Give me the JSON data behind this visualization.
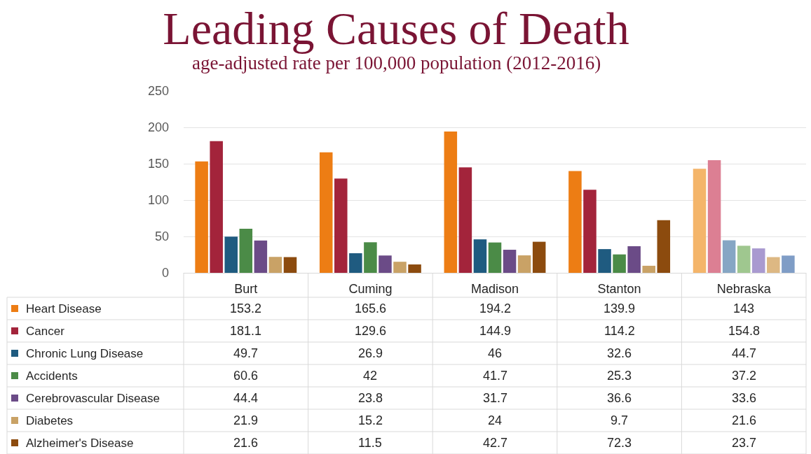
{
  "chart_data": {
    "type": "bar",
    "title": "Leading Causes of Death",
    "subtitle": "age-adjusted rate per 100,000 population (2012-2016)",
    "categories": [
      "Burt",
      "Cuming",
      "Madison",
      "Stanton",
      "Nebraska"
    ],
    "series": [
      {
        "name": "Heart Disease",
        "color": "#ed7d14",
        "colors": [
          "#ed7d14",
          "#ed7d14",
          "#ed7d14",
          "#ed7d14",
          "#f4b56a"
        ],
        "values": [
          153.2,
          165.6,
          194.2,
          139.9,
          143
        ]
      },
      {
        "name": "Cancer",
        "color": "#a3243b",
        "colors": [
          "#a3243b",
          "#a3243b",
          "#a3243b",
          "#a3243b",
          "#dc7f93"
        ],
        "values": [
          181.1,
          129.6,
          144.9,
          114.2,
          154.8
        ]
      },
      {
        "name": "Chronic Lung Disease",
        "color": "#1f5b80",
        "colors": [
          "#1f5b80",
          "#1f5b80",
          "#1f5b80",
          "#1f5b80",
          "#86a6c4"
        ],
        "values": [
          49.7,
          26.9,
          46,
          32.6,
          44.7
        ]
      },
      {
        "name": "Accidents",
        "color": "#4b8b47",
        "colors": [
          "#4b8b47",
          "#4b8b47",
          "#4b8b47",
          "#4b8b47",
          "#9fc78f"
        ],
        "values": [
          60.6,
          42,
          41.7,
          25.3,
          37.2
        ]
      },
      {
        "name": "Cerebrovascular Disease",
        "color": "#6b4b87",
        "colors": [
          "#6b4b87",
          "#6b4b87",
          "#6b4b87",
          "#6b4b87",
          "#a99ad0"
        ],
        "values": [
          44.4,
          23.8,
          31.7,
          36.6,
          33.6
        ]
      },
      {
        "name": "Diabetes",
        "color": "#c9a266",
        "colors": [
          "#c9a266",
          "#c9a266",
          "#c9a266",
          "#c9a266",
          "#ddb883"
        ],
        "values": [
          21.9,
          15.2,
          24,
          9.7,
          21.6
        ]
      },
      {
        "name": "Alzheimer's Disease",
        "color": "#8c4b0e",
        "colors": [
          "#8c4b0e",
          "#8c4b0e",
          "#8c4b0e",
          "#8c4b0e",
          "#7f9dc6"
        ],
        "values": [
          21.6,
          11.5,
          42.7,
          72.3,
          23.7
        ]
      }
    ],
    "ylim": [
      0,
      250
    ],
    "yticks": [
      0,
      50,
      100,
      150,
      200,
      250
    ],
    "grid": "y",
    "legend": "bottom left",
    "data_labels": true
  }
}
